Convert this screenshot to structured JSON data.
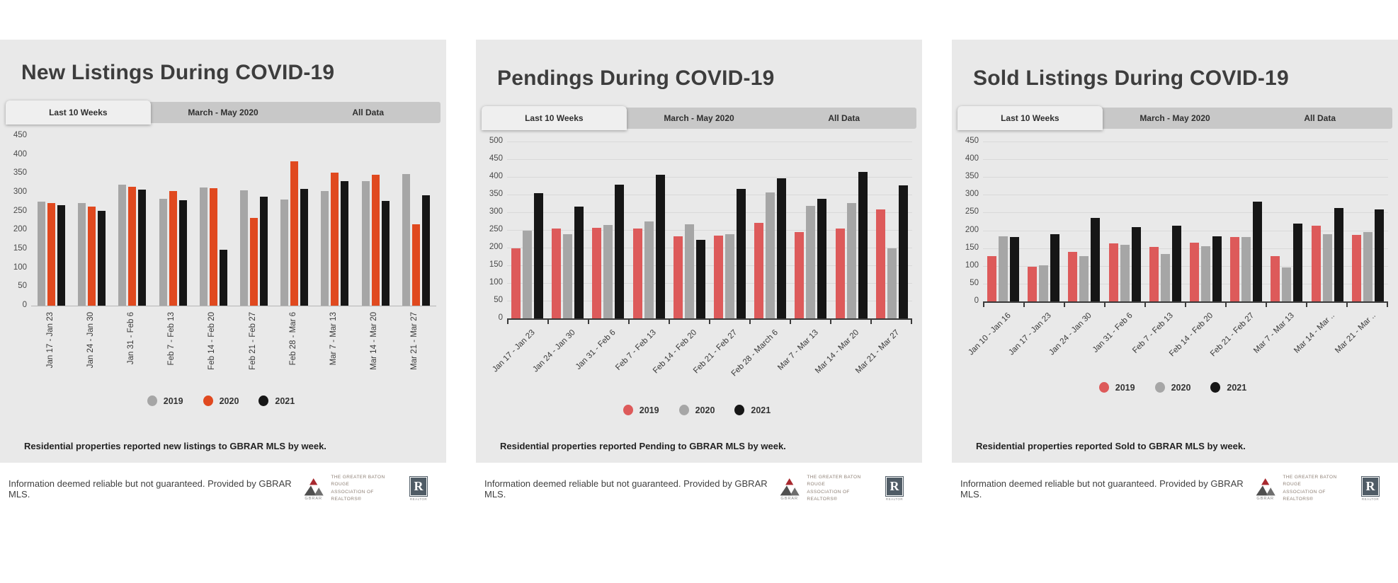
{
  "panels": [
    {
      "title": "New Listings During COVID-19",
      "tabs": [
        {
          "label": "Last 10 Weeks",
          "active": true
        },
        {
          "label": "March - May 2020",
          "active": false
        },
        {
          "label": "All Data",
          "active": false
        }
      ],
      "caption": "Residential properties reported new listings to GBRAR MLS by week."
    },
    {
      "title": "Pendings During COVID-19",
      "tabs": [
        {
          "label": "Last 10 Weeks",
          "active": true
        },
        {
          "label": "March - May 2020",
          "active": false
        },
        {
          "label": "All Data",
          "active": false
        }
      ],
      "caption": "Residential properties reported Pending to GBRAR MLS by week."
    },
    {
      "title": "Sold Listings During COVID-19",
      "tabs": [
        {
          "label": "Last 10 Weeks",
          "active": true
        },
        {
          "label": "March - May 2020",
          "active": false
        },
        {
          "label": "All Data",
          "active": false
        }
      ],
      "caption": "Residential properties reported Sold to GBRAR MLS by week."
    }
  ],
  "chart_data": [
    {
      "type": "bar",
      "title": "New Listings During COVID-19",
      "categories": [
        "Jan 17 - Jan 23",
        "Jan 24 - Jan 30",
        "Jan 31 - Feb 6",
        "Feb 7 - Feb 13",
        "Feb 14 - Feb 20",
        "Feb 21 - Feb 27",
        "Feb 28 - Mar 6",
        "Mar 7 - Mar 13",
        "Mar 14 - Mar 20",
        "Mar 21 - Mar 27"
      ],
      "series": [
        {
          "name": "2019",
          "color": "#a6a6a6",
          "values": [
            275,
            271,
            320,
            283,
            313,
            306,
            281,
            303,
            330,
            349
          ]
        },
        {
          "name": "2020",
          "color": "#e0491f",
          "values": [
            271,
            262,
            315,
            303,
            311,
            232,
            383,
            352,
            347,
            216
          ]
        },
        {
          "name": "2021",
          "color": "#161616",
          "values": [
            267,
            252,
            308,
            279,
            148,
            289,
            309,
            330,
            278,
            292
          ]
        }
      ],
      "ylim": [
        0,
        450
      ],
      "yticks": [
        0,
        50,
        100,
        150,
        200,
        250,
        300,
        350,
        400,
        450
      ],
      "grid": false,
      "legend_position": "bottom",
      "x_label_rotation": -90,
      "xlabel": "",
      "ylabel": ""
    },
    {
      "type": "bar",
      "title": "Pendings During COVID-19",
      "categories": [
        "Jan 17 - Jan 23",
        "Jan 24 - Jan 30",
        "Jan 31 - Feb 6",
        "Feb 7 - Feb 13",
        "Feb 14 - Feb 20",
        "Feb 21 - Feb 27",
        "Feb 28 - March 6",
        "Mar 7 - Mar 13",
        "Mar 14 - Mar 20",
        "Mar 21 - Mar 27"
      ],
      "series": [
        {
          "name": "2019",
          "color": "#dd5a5a",
          "values": [
            199,
            254,
            256,
            254,
            232,
            234,
            271,
            244,
            254,
            309
          ]
        },
        {
          "name": "2020",
          "color": "#a6a6a6",
          "values": [
            249,
            238,
            265,
            274,
            267,
            238,
            357,
            319,
            327,
            199
          ]
        },
        {
          "name": "2021",
          "color": "#161616",
          "values": [
            354,
            317,
            379,
            407,
            223,
            367,
            397,
            339,
            414,
            377
          ]
        }
      ],
      "ylim": [
        0,
        500
      ],
      "yticks": [
        0,
        50,
        100,
        150,
        200,
        250,
        300,
        350,
        400,
        450,
        500
      ],
      "grid": true,
      "legend_position": "bottom",
      "x_label_rotation": -45,
      "xlabel": "",
      "ylabel": ""
    },
    {
      "type": "bar",
      "title": "Sold Listings During COVID-19",
      "categories": [
        "Jan 10 - Jan 16",
        "Jan 17 - Jan 23",
        "Jan 24 - Jan 30",
        "Jan 31 - Feb 6",
        "Feb 7 - Feb 13",
        "Feb 14 - Feb 20",
        "Feb 21 - Feb 27",
        "Mar 7 - Mar 13",
        "Mar 14 - Mar ..",
        "Mar 21 - Mar .."
      ],
      "series": [
        {
          "name": "2019",
          "color": "#dd5a5a",
          "values": [
            128,
            97,
            139,
            164,
            153,
            166,
            182,
            128,
            213,
            187
          ]
        },
        {
          "name": "2020",
          "color": "#a6a6a6",
          "values": [
            183,
            101,
            128,
            160,
            134,
            156,
            181,
            96,
            190,
            195
          ]
        },
        {
          "name": "2021",
          "color": "#161616",
          "values": [
            181,
            190,
            235,
            210,
            214,
            183,
            281,
            219,
            262,
            258
          ]
        }
      ],
      "ylim": [
        0,
        450
      ],
      "yticks": [
        0,
        50,
        100,
        150,
        200,
        250,
        300,
        350,
        400,
        450
      ],
      "grid": true,
      "legend_position": "bottom",
      "x_label_rotation": -45,
      "xlabel": "",
      "ylabel": ""
    }
  ],
  "footer": {
    "disclaimer": "Information deemed reliable but not guaranteed. Provided by GBRAR MLS."
  },
  "branding": {
    "gbrar_name": "GBRAR",
    "assoc_line1": "The Greater Baton Rouge",
    "assoc_line2": "Association of REALTORS®",
    "realtor_letter": "R",
    "realtor_word": "REALTOR",
    "gbrar_red": "#a8292f",
    "accent_orange": "#e0491f",
    "accent_red": "#dd5a5a"
  }
}
